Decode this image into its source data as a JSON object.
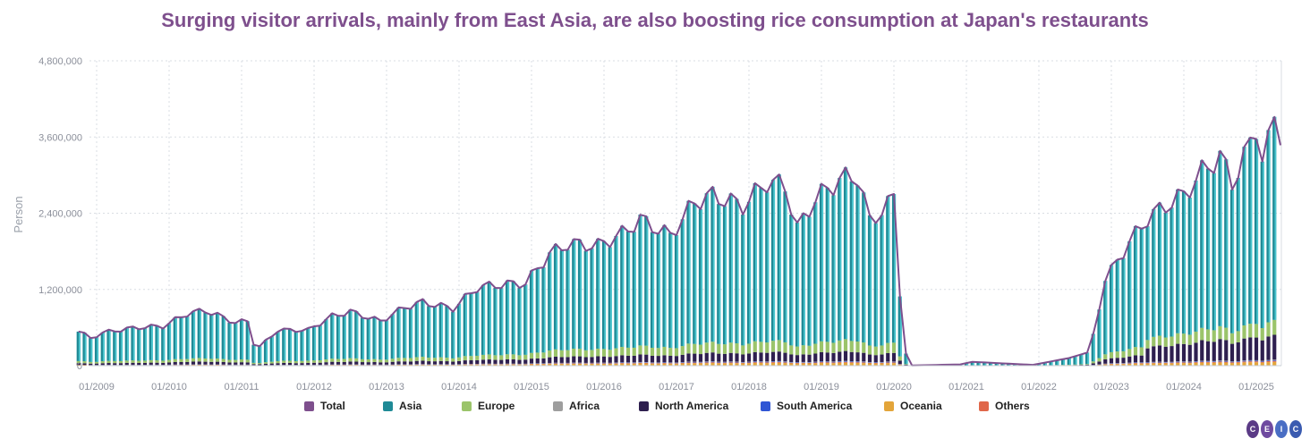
{
  "title": "Surging visitor arrivals, mainly from East Asia, are also boosting rice consumption at Japan's restaurants",
  "logo_text": "CEIC",
  "colors": {
    "total": "#7e4f8d",
    "asia": "#1f8a96",
    "asia_light": "#5ad8e0",
    "europe": "#9bc46a",
    "africa": "#9e9e9e",
    "north_america": "#2e1f4f",
    "south_america": "#2f55d4",
    "oceania": "#e3a53a",
    "others": "#e0674a",
    "grid": "#d9dde3",
    "axis_text": "#8b8f9a"
  },
  "legend": [
    {
      "label": "Total",
      "color": "#7e4f8d"
    },
    {
      "label": "Asia",
      "color": "#1f8a96"
    },
    {
      "label": "Europe",
      "color": "#9bc46a"
    },
    {
      "label": "Africa",
      "color": "#9e9e9e"
    },
    {
      "label": "North America",
      "color": "#2e1f4f"
    },
    {
      "label": "South America",
      "color": "#2f55d4"
    },
    {
      "label": "Oceania",
      "color": "#e3a53a"
    },
    {
      "label": "Others",
      "color": "#e0674a"
    }
  ],
  "chart_data": {
    "type": "bar",
    "stacked": true,
    "ylabel": "Person",
    "ylim": [
      0,
      4800000
    ],
    "yticks": [
      0,
      1200000,
      2400000,
      3600000,
      4800000
    ],
    "ytick_labels": [
      "0",
      "1,200,000",
      "2,400,000",
      "3,600,000",
      "4,800,000"
    ],
    "xticks": [
      "01/2009",
      "01/2010",
      "01/2011",
      "01/2012",
      "01/2013",
      "01/2014",
      "01/2015",
      "01/2016",
      "01/2017",
      "01/2018",
      "01/2019",
      "01/2020",
      "01/2021",
      "01/2022",
      "01/2023",
      "01/2024",
      "01/2025"
    ],
    "grid": true,
    "legend_position": "bottom",
    "series_names": [
      "Total",
      "Asia",
      "Europe",
      "Africa",
      "North America",
      "South America",
      "Oceania",
      "Others"
    ],
    "start_month": "10/2008",
    "end_month": "05/2025",
    "total_anchors": [
      [
        "10/2008",
        550000
      ],
      [
        "12/2008",
        430000
      ],
      [
        "02/2009",
        520000
      ],
      [
        "06/2009",
        580000
      ],
      [
        "09/2009",
        610000
      ],
      [
        "12/2009",
        620000
      ],
      [
        "04/2010",
        820000
      ],
      [
        "07/2010",
        870000
      ],
      [
        "12/2010",
        680000
      ],
      [
        "02/2011",
        700000
      ],
      [
        "03/2011",
        350000
      ],
      [
        "04/2011",
        300000
      ],
      [
        "07/2011",
        560000
      ],
      [
        "12/2011",
        560000
      ],
      [
        "04/2012",
        780000
      ],
      [
        "07/2012",
        850000
      ],
      [
        "12/2012",
        700000
      ],
      [
        "04/2013",
        920000
      ],
      [
        "07/2013",
        1000000
      ],
      [
        "12/2013",
        900000
      ],
      [
        "04/2014",
        1230000
      ],
      [
        "07/2014",
        1270000
      ],
      [
        "12/2014",
        1300000
      ],
      [
        "04/2015",
        1760000
      ],
      [
        "07/2015",
        1920000
      ],
      [
        "12/2015",
        1890000
      ],
      [
        "04/2016",
        2080000
      ],
      [
        "07/2016",
        2300000
      ],
      [
        "12/2016",
        2050000
      ],
      [
        "04/2017",
        2580000
      ],
      [
        "07/2017",
        2680000
      ],
      [
        "12/2017",
        2520000
      ],
      [
        "04/2018",
        2900000
      ],
      [
        "07/2018",
        2830000
      ],
      [
        "09/2018",
        2160000
      ],
      [
        "12/2018",
        2630000
      ],
      [
        "04/2019",
        2930000
      ],
      [
        "07/2019",
        2990000
      ],
      [
        "09/2019",
        2270000
      ],
      [
        "12/2019",
        2530000
      ],
      [
        "01/2020",
        2660000
      ],
      [
        "02/2020",
        1090000
      ],
      [
        "03/2020",
        190000
      ],
      [
        "04/2020",
        2900
      ],
      [
        "12/2020",
        20000
      ],
      [
        "02/2021",
        60000
      ],
      [
        "12/2021",
        12000
      ],
      [
        "03/2022",
        66000
      ],
      [
        "06/2022",
        120000
      ],
      [
        "09/2022",
        206000
      ],
      [
        "10/2022",
        500000
      ],
      [
        "11/2022",
        930000
      ],
      [
        "12/2022",
        1370000
      ],
      [
        "01/2023",
        1500000
      ],
      [
        "04/2023",
        1950000
      ],
      [
        "07/2023",
        2320000
      ],
      [
        "10/2023",
        2520000
      ],
      [
        "01/2024",
        2690000
      ],
      [
        "04/2024",
        3050000
      ],
      [
        "07/2024",
        3300000
      ],
      [
        "09/2024",
        2880000
      ],
      [
        "12/2024",
        3490000
      ],
      [
        "01/2025",
        3780000
      ],
      [
        "02/2025",
        3260000
      ],
      [
        "03/2025",
        3500000
      ],
      [
        "04/2025",
        3920000
      ],
      [
        "05/2025",
        3690000
      ]
    ]
  }
}
